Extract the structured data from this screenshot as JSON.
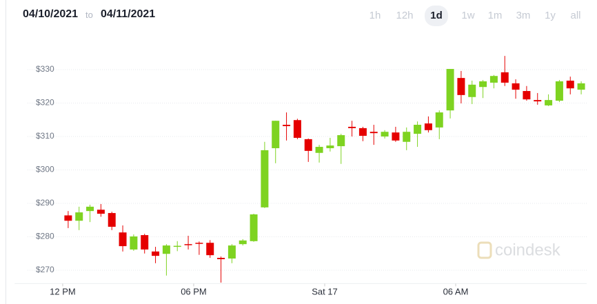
{
  "header": {
    "from": "04/10/2021",
    "to_word": "to",
    "to": "04/11/2021",
    "ranges": [
      "1h",
      "12h",
      "1d",
      "1w",
      "1m",
      "3m",
      "1y",
      "all"
    ],
    "selected_range": "1d"
  },
  "watermark": "coindesk",
  "chart_data": {
    "type": "candlestick",
    "up_color": "#7ed321",
    "down_color": "#e50000",
    "x": [
      0.25,
      0.75,
      1.25,
      1.75,
      2.25,
      2.75,
      3.25,
      3.75,
      4.25,
      4.75,
      5.25,
      5.75,
      6.25,
      6.75,
      7.25,
      7.75,
      8.25,
      8.75,
      9.25,
      9.75,
      10.25,
      10.75,
      11.25,
      11.75,
      12.25,
      12.75,
      13.25,
      13.75,
      14.25,
      14.75,
      15.25,
      15.75,
      16.25,
      16.75,
      17.25,
      17.75,
      18.25,
      18.75,
      19.25,
      19.75,
      20.25,
      20.75,
      21.25,
      21.75,
      22.25,
      22.75,
      23.25,
      23.75
    ],
    "open": [
      286.4,
      284.8,
      287.7,
      288.1,
      287.1,
      281.3,
      276.2,
      280.5,
      275.6,
      274.9,
      277,
      277.8,
      278.2,
      278.2,
      273.7,
      273.5,
      277.8,
      278.7,
      288.8,
      306.5,
      313.5,
      314.9,
      309.2,
      305.1,
      306.5,
      307.1,
      312.9,
      312.5,
      311.4,
      310,
      311.2,
      308.4,
      310.8,
      313.9,
      312.7,
      317.8,
      327.5,
      321.8,
      324.8,
      326.1,
      329.2,
      325.9,
      323.6,
      320.9,
      319.3,
      320.7,
      326.7,
      324
    ],
    "high": [
      287.7,
      289,
      289.6,
      289.8,
      287.5,
      283.4,
      280.7,
      280.9,
      277,
      277.8,
      278.7,
      280.3,
      278.6,
      279,
      274.1,
      277.8,
      279.3,
      286.9,
      308.4,
      314.7,
      317.2,
      315.3,
      309.4,
      307.5,
      309.6,
      310.8,
      314.7,
      312.9,
      313.5,
      311.9,
      312.9,
      312.7,
      314.5,
      316,
      317.8,
      330.2,
      329.6,
      326.7,
      326.9,
      328.4,
      334.1,
      327.1,
      325.1,
      323,
      322.6,
      326.9,
      327.9,
      326.5
    ],
    "low": [
      282.6,
      282,
      284.4,
      286,
      282,
      275.6,
      275.8,
      275,
      272.1,
      268.4,
      275.7,
      276.2,
      274.6,
      273.7,
      266.3,
      272.1,
      277.4,
      278.5,
      288.6,
      302,
      308.8,
      309.2,
      302.4,
      302.2,
      305.5,
      301.8,
      310,
      308.6,
      307.5,
      309.4,
      308.4,
      305.9,
      306.9,
      311.2,
      309.2,
      315.4,
      319.9,
      319.7,
      321.5,
      324.4,
      325.1,
      321.3,
      320.7,
      319.5,
      319.1,
      320.3,
      322.6,
      322.6
    ],
    "close": [
      284.8,
      287.3,
      289,
      286.9,
      283,
      277.2,
      280.1,
      276.2,
      274.3,
      277.4,
      277.3,
      277.6,
      278,
      274.5,
      273.3,
      277.4,
      278.9,
      286.7,
      305.9,
      314.7,
      313.1,
      309.6,
      305.7,
      306.9,
      307.3,
      310.4,
      312.5,
      310.2,
      311,
      311.4,
      308.8,
      311.4,
      313.5,
      311.9,
      317.2,
      330.2,
      322.4,
      325.5,
      326.5,
      328.1,
      326.1,
      324,
      321.1,
      320.5,
      320.9,
      326.5,
      324.4,
      325.9
    ],
    "xlim": [
      -2.2,
      24
    ],
    "xticks": [
      {
        "value": 0,
        "label": "12 PM"
      },
      {
        "value": 6,
        "label": "06 PM"
      },
      {
        "value": 12,
        "label": "Sat 17"
      },
      {
        "value": 18,
        "label": "06 AM"
      }
    ],
    "ylim": [
      266,
      341
    ],
    "yticks": [
      {
        "value": 270,
        "label": "$270"
      },
      {
        "value": 280,
        "label": "$280"
      },
      {
        "value": 290,
        "label": "$290"
      },
      {
        "value": 300,
        "label": "$300"
      },
      {
        "value": 310,
        "label": "$310"
      },
      {
        "value": 320,
        "label": "$320"
      },
      {
        "value": 330,
        "label": "$330"
      }
    ],
    "grid": true
  }
}
